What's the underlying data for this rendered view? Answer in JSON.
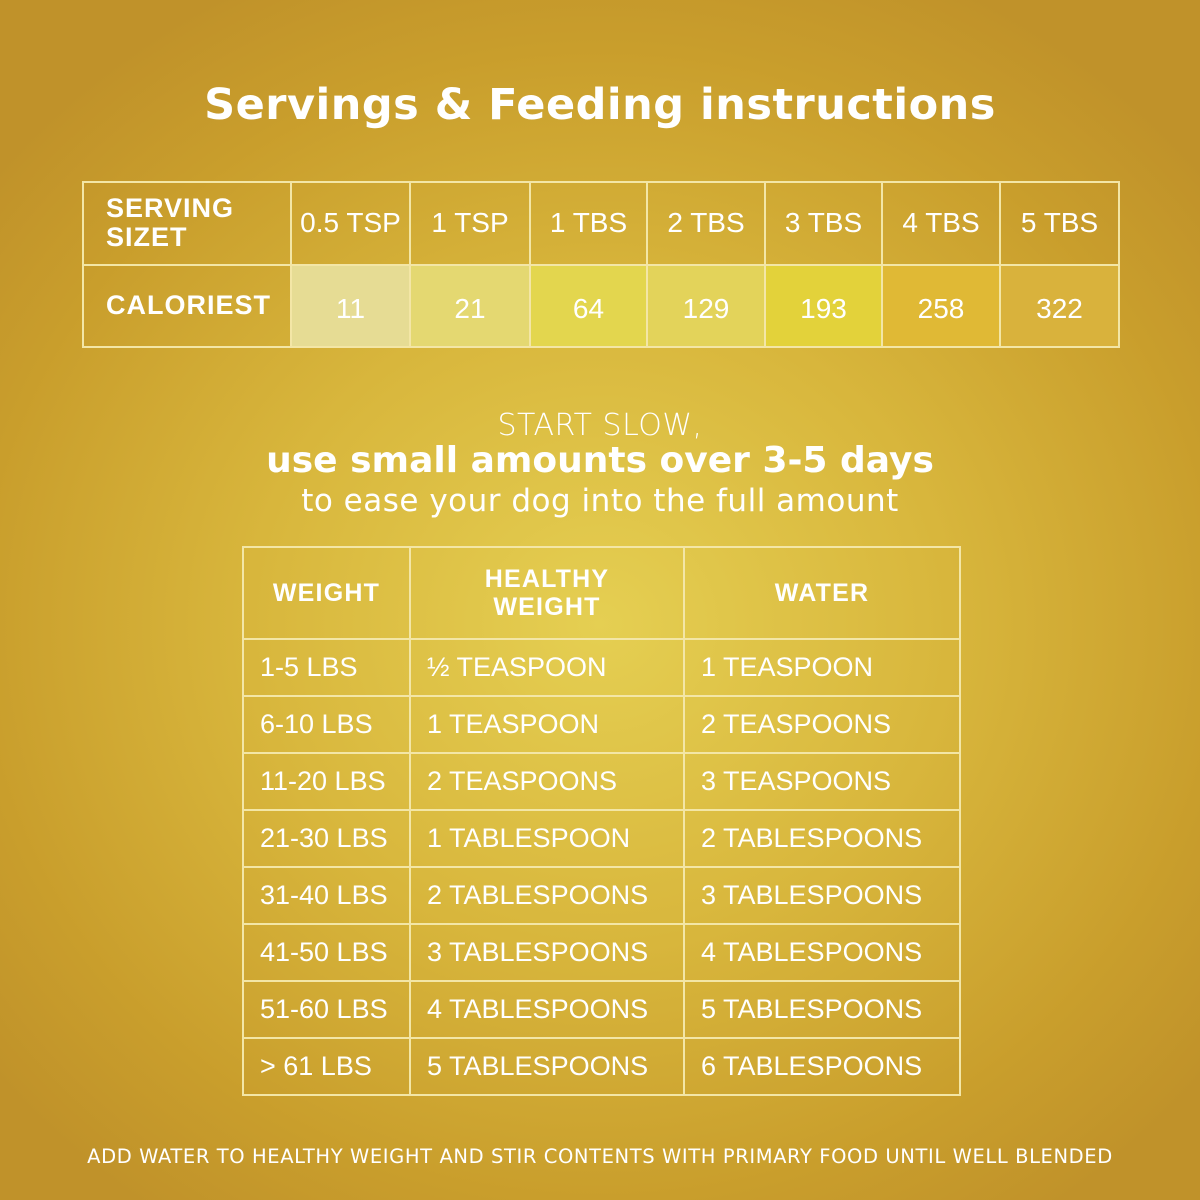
{
  "title": "Servings & Feeding instructions",
  "serving_table": {
    "serving_label": "SERVING SIZET",
    "calories_label": "CALORIEST",
    "sizes": [
      "0.5 TSP",
      "1 TSP",
      "1 TBS",
      "2 TBS",
      "3 TBS",
      "4 TBS",
      "5 TBS"
    ],
    "calories": [
      "11",
      "21",
      "64",
      "129",
      "193",
      "258",
      "322"
    ],
    "calorie_cell_colors": [
      "#e6dc94",
      "#e4d871",
      "#e3d64e",
      "#e3d35a",
      "#e3d23a",
      "#e0b935",
      "#d9b23c"
    ]
  },
  "intro": {
    "line1": "START SLOW,",
    "line2": "use small amounts over 3-5 days",
    "line3": "to ease your dog into the full amount"
  },
  "weight_table": {
    "headers": [
      "WEIGHT",
      "HEALTHY WEIGHT",
      "WATER"
    ],
    "rows": [
      [
        "1-5 LBS",
        "½ TEASPOON",
        "1 TEASPOON"
      ],
      [
        "6-10 LBS",
        "1 TEASPOON",
        "2 TEASPOONS"
      ],
      [
        "11-20 LBS",
        "2 TEASPOONS",
        "3 TEASPOONS"
      ],
      [
        "21-30 LBS",
        "1 TABLESPOON",
        "2 TABLESPOONS"
      ],
      [
        "31-40 LBS",
        "2 TABLESPOONS",
        "3 TABLESPOONS"
      ],
      [
        "41-50 LBS",
        "3 TABLESPOONS",
        "4 TABLESPOONS"
      ],
      [
        "51-60 LBS",
        "4 TABLESPOONS",
        "5 TABLESPOONS"
      ],
      [
        "> 61 LBS",
        "5 TABLESPOONS",
        "6 TABLESPOONS"
      ]
    ]
  },
  "footer": "ADD WATER TO HEALTHY WEIGHT AND STIR CONTENTS WITH PRIMARY FOOD UNTIL WELL BLENDED",
  "colors": {
    "background": "#d8b63c",
    "border": "#f3e6a6",
    "text": "#ffffff"
  }
}
